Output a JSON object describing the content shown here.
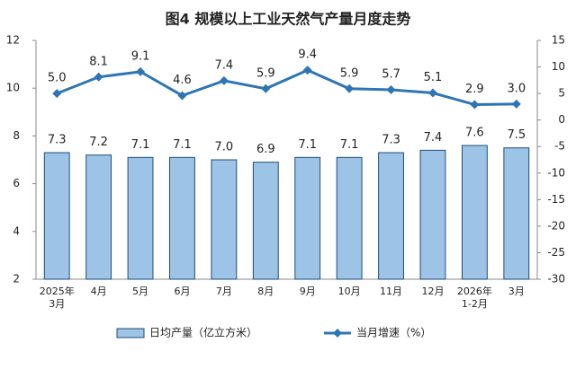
{
  "chart_data": {
    "type": "bar_line",
    "title": "图4  规模以上工业天然气产量月度走势",
    "categories": [
      "2025年\n3月",
      "4月",
      "5月",
      "6月",
      "7月",
      "8月",
      "9月",
      "10月",
      "11月",
      "12月",
      "2026年\n1-2月",
      "3月"
    ],
    "series": [
      {
        "name": "日均产量（亿立方米）",
        "type": "bar",
        "color": "#9dc3e6",
        "edge": "#1f4e79",
        "values": [
          7.3,
          7.2,
          7.1,
          7.1,
          7.0,
          6.9,
          7.1,
          7.1,
          7.3,
          7.4,
          7.6,
          7.5
        ],
        "value_labels": [
          "7.3",
          "7.2",
          "7.1",
          "7.1",
          "7.0",
          "6.9",
          "7.1",
          "7.1",
          "7.3",
          "7.4",
          "7.6",
          "7.5"
        ]
      },
      {
        "name": "当月增速（%）",
        "type": "line",
        "axis": "y2",
        "color": "#2e75b6",
        "values": [
          5.0,
          8.1,
          9.1,
          4.6,
          7.4,
          5.9,
          9.4,
          5.9,
          5.7,
          5.1,
          2.9,
          3.0
        ],
        "value_labels": [
          "5.0",
          "8.1",
          "9.1",
          "4.6",
          "7.4",
          "5.9",
          "9.4",
          "5.9",
          "5.7",
          "5.1",
          "2.9",
          "3.0"
        ]
      }
    ],
    "ylim": [
      2,
      12
    ],
    "yticks": [
      2,
      4,
      6,
      8,
      10,
      12
    ],
    "y2lim": [
      -30,
      15
    ],
    "y2ticks": [
      -30,
      -25,
      -20,
      -15,
      -10,
      -5,
      0,
      5,
      10,
      15
    ]
  }
}
